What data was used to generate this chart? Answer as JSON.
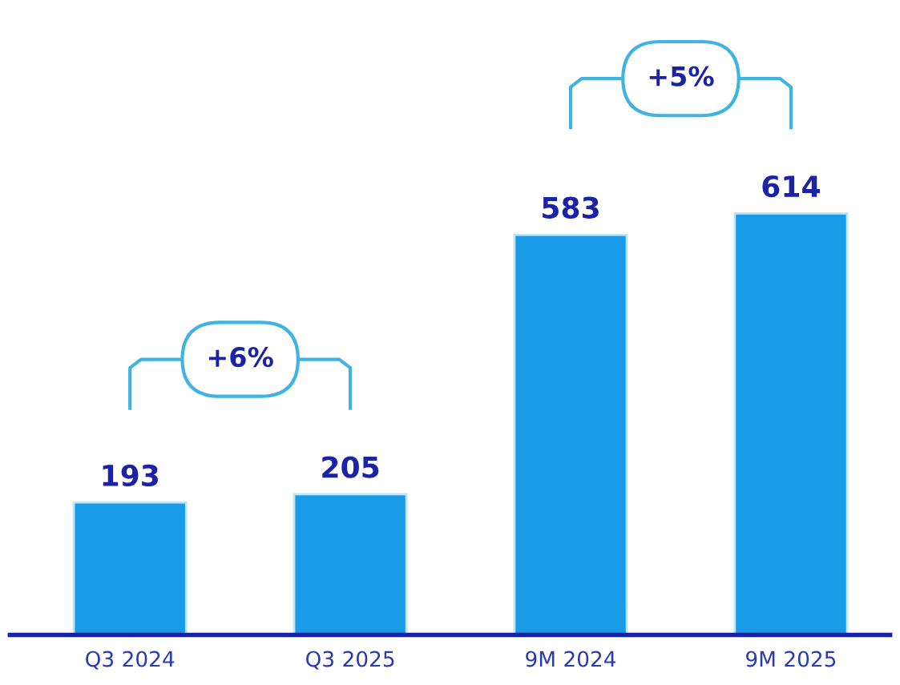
{
  "chart_data": {
    "type": "bar",
    "categories": [
      "Q3 2024",
      "Q3 2025",
      "9M 2024",
      "9M 2025"
    ],
    "values": [
      193,
      205,
      583,
      614
    ],
    "color": "#1a9be8",
    "data_labels": true,
    "annotations": [
      "+6%",
      "+5%"
    ],
    "grid": false
  }
}
